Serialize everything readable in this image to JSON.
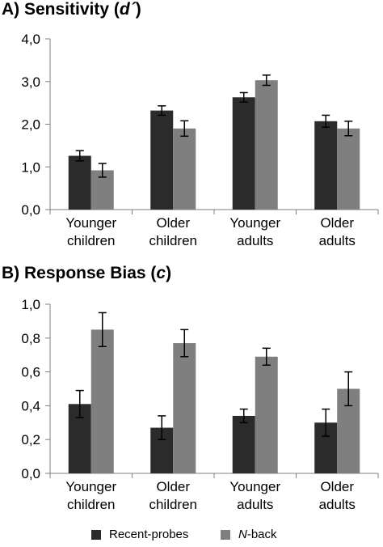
{
  "colors": {
    "recent_probes": "#2b2b2b",
    "n_back": "#7f7f7f",
    "axis": "#7f7f7f",
    "error_bar": "#000000"
  },
  "legend": {
    "items": [
      {
        "label": "Recent-probes",
        "italic_prefix": "",
        "color": "#2b2b2b"
      },
      {
        "label": "-back",
        "italic_prefix": "N",
        "color": "#7f7f7f"
      }
    ],
    "placement": "bottom"
  },
  "chart_data": [
    {
      "type": "bar",
      "title_prefix": "A) Sensitivity (",
      "title_symbol": "d´",
      "title_suffix": ")",
      "categories": [
        [
          "Younger",
          "children"
        ],
        [
          "Older",
          "children"
        ],
        [
          "Younger",
          "adults"
        ],
        [
          "Older",
          "adults"
        ]
      ],
      "ylim": [
        0,
        4
      ],
      "yticks": [
        "0,0",
        "1,0",
        "2,0",
        "3,0",
        "4,0"
      ],
      "grid": false,
      "series": [
        {
          "name": "Recent-probes",
          "values": [
            1.26,
            2.32,
            2.63,
            2.07
          ],
          "errors": [
            0.12,
            0.11,
            0.11,
            0.14
          ]
        },
        {
          "name": "N-back",
          "values": [
            0.92,
            1.9,
            3.03,
            1.9
          ],
          "errors": [
            0.16,
            0.18,
            0.12,
            0.17
          ]
        }
      ]
    },
    {
      "type": "bar",
      "title_prefix": "B) Response Bias (",
      "title_symbol": "c",
      "title_suffix": ")",
      "categories": [
        [
          "Younger",
          "children"
        ],
        [
          "Older",
          "children"
        ],
        [
          "Younger",
          "adults"
        ],
        [
          "Older",
          "adults"
        ]
      ],
      "ylim": [
        0,
        1
      ],
      "yticks": [
        "0,0",
        "0,2",
        "0,4",
        "0,6",
        "0,8",
        "1,0"
      ],
      "grid": false,
      "series": [
        {
          "name": "Recent-probes",
          "values": [
            0.41,
            0.27,
            0.34,
            0.3
          ],
          "errors": [
            0.08,
            0.07,
            0.04,
            0.08
          ]
        },
        {
          "name": "N-back",
          "values": [
            0.85,
            0.77,
            0.69,
            0.5
          ],
          "errors": [
            0.1,
            0.08,
            0.05,
            0.1
          ]
        }
      ]
    }
  ]
}
